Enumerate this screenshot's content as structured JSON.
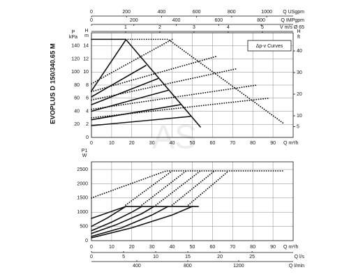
{
  "title": "EVOPLUS D 150/340.65 M",
  "watermark": "AS",
  "chart_data": [
    {
      "type": "line",
      "annotation": "Δp-v Curves",
      "grid": true,
      "xlabel": "Q m³/h",
      "xlim": [
        0,
        100
      ],
      "xticks": [
        0,
        10,
        20,
        30,
        40,
        50,
        60,
        70,
        80,
        90
      ],
      "ylabel": "H",
      "yunit": "m",
      "ylim": [
        0,
        16
      ],
      "yticks": [
        0,
        2,
        4,
        6,
        8,
        10,
        12,
        14
      ],
      "y3label": "P",
      "y3unit": "kPa",
      "y3lim": [
        0,
        160
      ],
      "y3ticks": [
        20,
        40,
        60,
        80,
        100,
        120,
        140
      ],
      "y2label": "H",
      "y2unit": "ft",
      "y2lim": [
        0,
        48.4
      ],
      "y2ticks": [
        5,
        10,
        20,
        30,
        40
      ],
      "extra_axes": [
        {
          "label": "Q USgpm",
          "lim": [
            0,
            1151
          ],
          "ticks": [
            0,
            200,
            400,
            600,
            800,
            1000
          ]
        },
        {
          "label": "Q IMPgpm",
          "lim": [
            0,
            951
          ],
          "ticks": [
            0,
            200,
            400,
            600,
            800
          ]
        },
        {
          "label": "V m/s Ø 65",
          "lim": [
            0,
            5.9
          ],
          "ticks": [
            1,
            2,
            3,
            4,
            5
          ]
        }
      ],
      "series": [
        {
          "style": "solid",
          "x": [
            0,
            17,
            54
          ],
          "values": [
            15,
            15,
            1.6
          ]
        },
        {
          "style": "solid",
          "x": [
            0,
            49
          ],
          "values": [
            1.8,
            3.2
          ]
        },
        {
          "style": "solid",
          "x": [
            0,
            44
          ],
          "values": [
            2.7,
            5.0
          ]
        },
        {
          "style": "solid",
          "x": [
            0,
            38
          ],
          "values": [
            4.0,
            7.2
          ]
        },
        {
          "style": "solid",
          "x": [
            0,
            33
          ],
          "values": [
            5.0,
            9.0
          ]
        },
        {
          "style": "solid",
          "x": [
            0,
            27
          ],
          "values": [
            6.2,
            11.0
          ]
        },
        {
          "style": "solid",
          "x": [
            0,
            17
          ],
          "values": [
            7.1,
            14.9
          ]
        },
        {
          "style": "dotted",
          "x": [
            0,
            88
          ],
          "values": [
            3.0,
            6.0
          ]
        },
        {
          "style": "dotted",
          "x": [
            0,
            82
          ],
          "values": [
            4.3,
            8.0
          ]
        },
        {
          "style": "dotted",
          "x": [
            0,
            72
          ],
          "values": [
            5.7,
            10.5
          ]
        },
        {
          "style": "dotted",
          "x": [
            0,
            62
          ],
          "values": [
            7.0,
            12.4
          ]
        },
        {
          "style": "dotted",
          "x": [
            0,
            40
          ],
          "values": [
            8.2,
            15.0
          ]
        },
        {
          "style": "dotted",
          "x": [
            17,
            38,
            95
          ],
          "values": [
            15,
            15,
            2.2
          ]
        }
      ]
    },
    {
      "type": "line",
      "grid": true,
      "xlabel": "Q m³/h",
      "xlim": [
        0,
        100
      ],
      "xticks": [
        0,
        10,
        20,
        30,
        40,
        50,
        60,
        70,
        80,
        90
      ],
      "ylabel": "P1",
      "yunit": "W",
      "ylim": [
        0,
        2770
      ],
      "yticks": [
        0,
        500,
        1000,
        1500,
        2000,
        2500
      ],
      "extra_axes": [
        {
          "label": "Q l/s",
          "lim": [
            0,
            31.4
          ],
          "ticks": [
            0,
            5,
            10,
            15,
            20,
            25
          ]
        },
        {
          "label": "Q l/min",
          "lim": [
            44,
            1628
          ],
          "ticks": [
            400,
            800,
            1200
          ]
        }
      ],
      "series": [
        {
          "style": "solid",
          "x": [
            0,
            17,
            53
          ],
          "values": [
            780,
            1200,
            1200
          ]
        },
        {
          "style": "solid",
          "x": [
            0,
            20,
            40,
            50
          ],
          "values": [
            100,
            450,
            900,
            1200
          ]
        },
        {
          "style": "solid",
          "x": [
            0,
            15,
            30,
            38
          ],
          "values": [
            150,
            450,
            900,
            1200
          ]
        },
        {
          "style": "solid",
          "x": [
            0,
            12,
            25,
            31
          ],
          "values": [
            250,
            550,
            950,
            1200
          ]
        },
        {
          "style": "solid",
          "x": [
            0,
            10,
            20,
            25
          ],
          "values": [
            350,
            650,
            1000,
            1200
          ]
        },
        {
          "style": "solid",
          "x": [
            0,
            8,
            17
          ],
          "values": [
            500,
            800,
            1200
          ]
        },
        {
          "style": "dotted",
          "x": [
            0,
            37,
            95
          ],
          "values": [
            1500,
            2450,
            2450
          ]
        },
        {
          "style": "dotted",
          "x": [
            17,
            40
          ],
          "values": [
            1250,
            2450
          ]
        },
        {
          "style": "dotted",
          "x": [
            25,
            47
          ],
          "values": [
            1250,
            2450
          ]
        },
        {
          "style": "dotted",
          "x": [
            32,
            54
          ],
          "values": [
            1250,
            2450
          ]
        },
        {
          "style": "dotted",
          "x": [
            40,
            61
          ],
          "values": [
            1250,
            2450
          ]
        },
        {
          "style": "dotted",
          "x": [
            48,
            68
          ],
          "values": [
            1250,
            2450
          ]
        }
      ]
    }
  ]
}
